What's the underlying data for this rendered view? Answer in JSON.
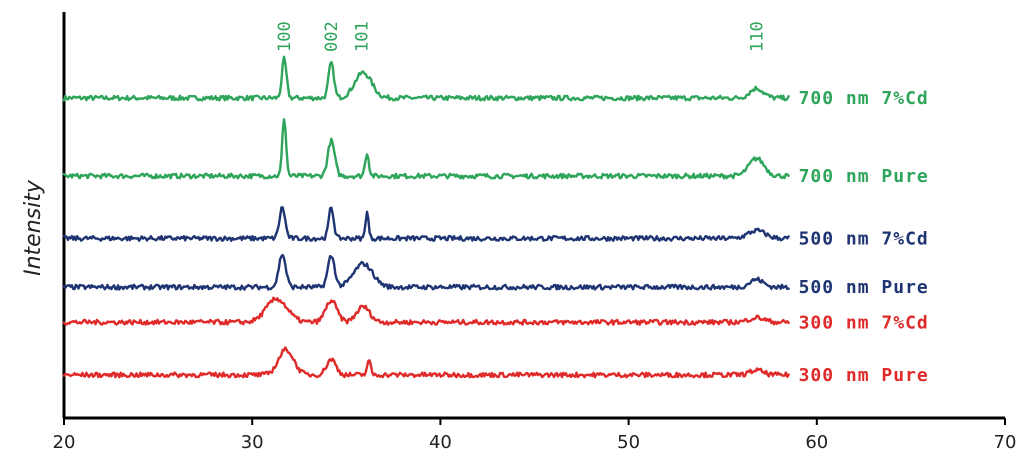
{
  "chart_data": {
    "type": "line",
    "title": "",
    "xlabel": "",
    "ylabel": "Intensity",
    "xlim": [
      20,
      70
    ],
    "x_ticks": [
      "20",
      "30",
      "40",
      "50",
      "60",
      "70"
    ],
    "grid": false,
    "legend": "inline labels at right end of each trace",
    "peak_labels": [
      {
        "text": "100",
        "x": 31.7
      },
      {
        "text": "002",
        "x": 34.2
      },
      {
        "text": "101",
        "x": 35.8
      },
      {
        "text": "110",
        "x": 56.8
      }
    ],
    "series": [
      {
        "name": "700 nm 7%Cd",
        "color": "#2ea55a",
        "x_range": [
          20,
          58.5
        ],
        "baseline": 0.8,
        "peaks": [
          {
            "x": 31.7,
            "height": 0.1,
            "width": 0.12
          },
          {
            "x": 34.2,
            "height": 0.09,
            "width": 0.14
          },
          {
            "x": 35.9,
            "height": 0.065,
            "width": 0.45
          },
          {
            "x": 56.8,
            "height": 0.025,
            "width": 0.35
          }
        ]
      },
      {
        "name": "700 nm Pure",
        "color": "#2ea55a",
        "x_range": [
          20,
          58.5
        ],
        "baseline": 0.6,
        "peaks": [
          {
            "x": 31.7,
            "height": 0.15,
            "width": 0.1
          },
          {
            "x": 34.2,
            "height": 0.09,
            "width": 0.18
          },
          {
            "x": 36.1,
            "height": 0.06,
            "width": 0.1
          },
          {
            "x": 56.8,
            "height": 0.045,
            "width": 0.4
          }
        ]
      },
      {
        "name": "500 nm 7%Cd",
        "color": "#1f3573",
        "x_range": [
          20,
          58.5
        ],
        "baseline": 0.44,
        "peaks": [
          {
            "x": 31.6,
            "height": 0.08,
            "width": 0.15
          },
          {
            "x": 34.2,
            "height": 0.08,
            "width": 0.13
          },
          {
            "x": 36.1,
            "height": 0.07,
            "width": 0.08
          },
          {
            "x": 56.8,
            "height": 0.02,
            "width": 0.45
          }
        ]
      },
      {
        "name": "500 nm Pure",
        "color": "#1f3573",
        "x_range": [
          20,
          58.5
        ],
        "baseline": 0.315,
        "peaks": [
          {
            "x": 31.6,
            "height": 0.085,
            "width": 0.18
          },
          {
            "x": 34.2,
            "height": 0.08,
            "width": 0.18
          },
          {
            "x": 35.9,
            "height": 0.06,
            "width": 0.5
          },
          {
            "x": 56.8,
            "height": 0.02,
            "width": 0.35
          }
        ]
      },
      {
        "name": "300 nm 7%Cd",
        "color": "#e02a2a",
        "x_range": [
          20,
          58.5
        ],
        "baseline": 0.225,
        "peaks": [
          {
            "x": 31.3,
            "height": 0.06,
            "width": 0.55
          },
          {
            "x": 34.2,
            "height": 0.055,
            "width": 0.3
          },
          {
            "x": 35.9,
            "height": 0.04,
            "width": 0.35
          },
          {
            "x": 56.8,
            "height": 0.012,
            "width": 0.4
          }
        ]
      },
      {
        "name": "300 nm Pure",
        "color": "#e02a2a",
        "x_range": [
          20,
          58.5
        ],
        "baseline": 0.09,
        "peaks": [
          {
            "x": 31.8,
            "height": 0.065,
            "width": 0.4
          },
          {
            "x": 34.2,
            "height": 0.04,
            "width": 0.25
          },
          {
            "x": 36.2,
            "height": 0.035,
            "width": 0.1
          },
          {
            "x": 56.8,
            "height": 0.012,
            "width": 0.35
          }
        ]
      }
    ]
  }
}
